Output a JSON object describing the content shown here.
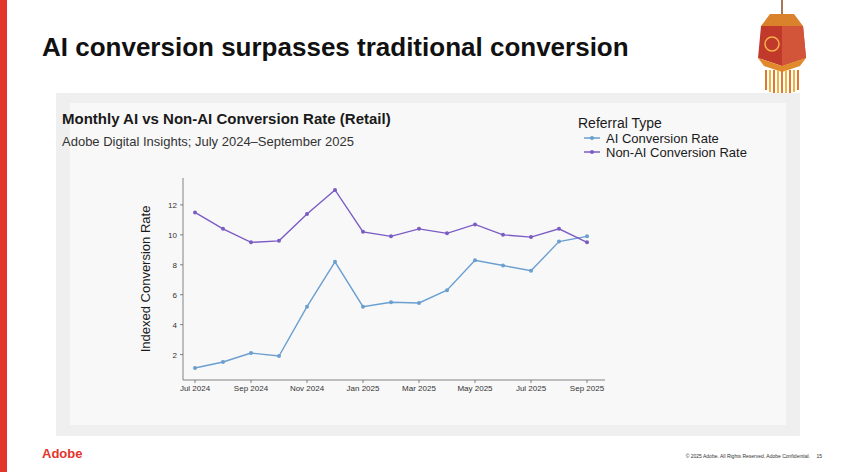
{
  "slide": {
    "title": "AI conversion surpasses traditional conversion",
    "logo": "Adobe",
    "footer": "© 2025 Adobe. All Rights Reserved. Adobe Confidential.",
    "page": "15"
  },
  "chart_data": {
    "type": "line",
    "title": "Monthly AI vs Non-AI Conversion Rate (Retail)",
    "subtitle": "Adobe Digital Insights; July 2024–September 2025",
    "y_label": "Indexed Conversion Rate",
    "legend_title": "Referral Type",
    "categories": [
      "Jul 2024",
      null,
      "Sep 2024",
      null,
      "Nov 2024",
      null,
      "Jan 2025",
      null,
      "Mar 2025",
      null,
      "May 2025",
      null,
      "Jul 2025",
      null,
      "Sep 2025"
    ],
    "series": [
      {
        "name": "AI Conversion Rate",
        "color": "#6a9fd0",
        "marker": "circle",
        "values": [
          1.1,
          1.5,
          2.1,
          1.9,
          5.2,
          8.2,
          5.2,
          5.5,
          5.45,
          6.3,
          8.3,
          7.95,
          7.6,
          9.55,
          9.9
        ]
      },
      {
        "name": "Non-AI Conversion Rate",
        "color": "#7b5cc4",
        "marker": "circle",
        "values": [
          11.5,
          10.4,
          9.5,
          9.6,
          11.4,
          13.0,
          10.2,
          9.9,
          10.4,
          10.1,
          10.7,
          10.0,
          9.85,
          10.4,
          9.5
        ]
      }
    ],
    "ylim": [
      0.3,
      13.8
    ],
    "yticks": [
      2,
      4,
      6,
      8,
      10,
      12
    ],
    "grid": false,
    "legend": "top-right"
  }
}
